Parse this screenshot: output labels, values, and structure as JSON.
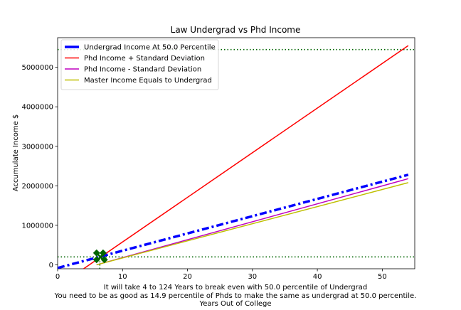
{
  "chart_data": {
    "type": "line",
    "title": "Law Undergrad vs Phd Income",
    "ylabel": "Accumulate Income $",
    "xlabel_lines": [
      "It will take 4 to 124 Years to break even with 50.0 percentile of Undergrad",
      "You need to be as good as 14.9 percentile of Phds to make the same as undergrad at 50.0 percentile.",
      "Years Out of College"
    ],
    "xlim": [
      0,
      55
    ],
    "ylim": [
      -100000,
      5750000
    ],
    "x_ticks": [
      0,
      10,
      20,
      30,
      40,
      50
    ],
    "x_tick_labels": [
      "0",
      "10",
      "20",
      "30",
      "40",
      "50"
    ],
    "y_ticks": [
      0,
      1000000,
      2000000,
      3000000,
      4000000,
      5000000
    ],
    "y_tick_labels": [
      "0",
      "1000000",
      "2000000",
      "3000000",
      "4000000",
      "5000000"
    ],
    "legend_position": "top-left",
    "series": [
      {
        "name": "Undergrad Income At 50.0 Percentile",
        "color": "#0000ff",
        "style": "dashdot",
        "x": [
          0,
          54
        ],
        "y": [
          -80000,
          2280000
        ]
      },
      {
        "name": "Phd Income + Standard Deviation",
        "color": "#ff0000",
        "style": "solid",
        "x": [
          4,
          54
        ],
        "y": [
          -100000,
          5550000
        ]
      },
      {
        "name": "Phd Income - Standard Deviation",
        "color": "#bf00bf",
        "style": "solid",
        "x": [
          6,
          54
        ],
        "y": [
          0,
          2180000
        ]
      },
      {
        "name": "Master Income Equals to Undergrad",
        "color": "#bfbf00",
        "style": "solid",
        "x": [
          6,
          54
        ],
        "y": [
          0,
          2080000
        ]
      }
    ],
    "reference_lines": [
      {
        "orientation": "horizontal",
        "y": 5450000,
        "color": "#006400",
        "style": "dotted"
      },
      {
        "orientation": "horizontal",
        "y": 200000,
        "color": "#006400",
        "style": "dotted"
      },
      {
        "orientation": "vertical",
        "x": 6.5,
        "y_to": 200000,
        "color": "#006400",
        "style": "dotted"
      }
    ],
    "markers": [
      {
        "x": 6.0,
        "y": 300000,
        "shape": "diamond",
        "color": "#006400"
      },
      {
        "x": 7.0,
        "y": 300000,
        "shape": "diamond",
        "color": "#006400"
      },
      {
        "x": 6.0,
        "y": 130000,
        "shape": "diamond",
        "color": "#006400"
      },
      {
        "x": 7.2,
        "y": 130000,
        "shape": "diamond",
        "color": "#006400"
      },
      {
        "x": 6.6,
        "y": 200000,
        "shape": "x",
        "color": "#006400"
      }
    ]
  }
}
